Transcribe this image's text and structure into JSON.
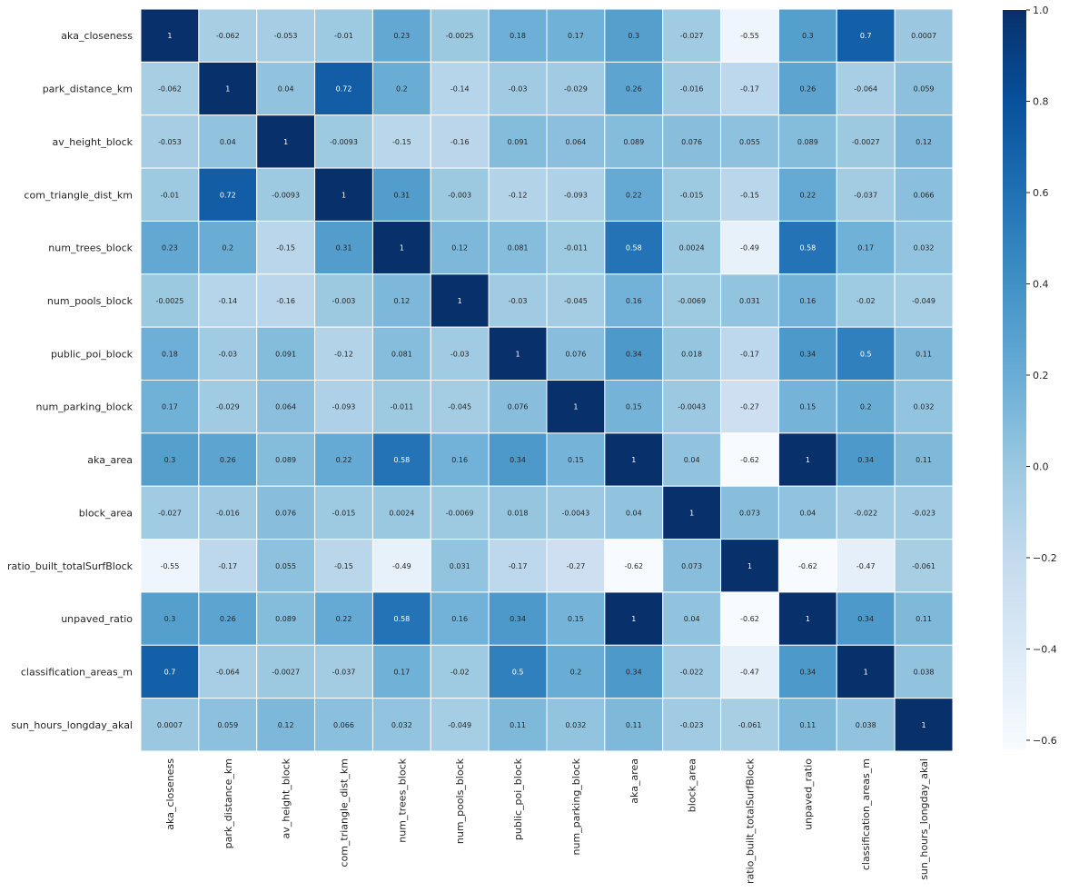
{
  "chart_data": {
    "type": "heatmap",
    "title": "",
    "colormap": "Blues",
    "labels": [
      "aka_closeness",
      "park_distance_km",
      "av_height_block",
      "com_triangle_dist_km",
      "num_trees_block",
      "num_pools_block",
      "public_poi_block",
      "num_parking_block",
      "aka_area",
      "block_area",
      "ratio_built_totalSurfBlock",
      "unpaved_ratio",
      "classification_areas_m",
      "sun_hours_longday_akal"
    ],
    "matrix": [
      [
        "1",
        "-0.062",
        "-0.053",
        "-0.01",
        "0.23",
        "-0.0025",
        "0.18",
        "0.17",
        "0.3",
        "-0.027",
        "-0.55",
        "0.3",
        "0.7",
        "0.0007"
      ],
      [
        "-0.062",
        "1",
        "0.04",
        "0.72",
        "0.2",
        "-0.14",
        "-0.03",
        "-0.029",
        "0.26",
        "-0.016",
        "-0.17",
        "0.26",
        "-0.064",
        "0.059"
      ],
      [
        "-0.053",
        "0.04",
        "1",
        "-0.0093",
        "-0.15",
        "-0.16",
        "0.091",
        "0.064",
        "0.089",
        "0.076",
        "0.055",
        "0.089",
        "-0.0027",
        "0.12"
      ],
      [
        "-0.01",
        "0.72",
        "-0.0093",
        "1",
        "0.31",
        "-0.003",
        "-0.12",
        "-0.093",
        "0.22",
        "-0.015",
        "-0.15",
        "0.22",
        "-0.037",
        "0.066"
      ],
      [
        "0.23",
        "0.2",
        "-0.15",
        "0.31",
        "1",
        "0.12",
        "0.081",
        "-0.011",
        "0.58",
        "0.0024",
        "-0.49",
        "0.58",
        "0.17",
        "0.032"
      ],
      [
        "-0.0025",
        "-0.14",
        "-0.16",
        "-0.003",
        "0.12",
        "1",
        "-0.03",
        "-0.045",
        "0.16",
        "-0.0069",
        "0.031",
        "0.16",
        "-0.02",
        "-0.049"
      ],
      [
        "0.18",
        "-0.03",
        "0.091",
        "-0.12",
        "0.081",
        "-0.03",
        "1",
        "0.076",
        "0.34",
        "0.018",
        "-0.17",
        "0.34",
        "0.5",
        "0.11"
      ],
      [
        "0.17",
        "-0.029",
        "0.064",
        "-0.093",
        "-0.011",
        "-0.045",
        "0.076",
        "1",
        "0.15",
        "-0.0043",
        "-0.27",
        "0.15",
        "0.2",
        "0.032"
      ],
      [
        "0.3",
        "0.26",
        "0.089",
        "0.22",
        "0.58",
        "0.16",
        "0.34",
        "0.15",
        "1",
        "0.04",
        "-0.62",
        "1",
        "0.34",
        "0.11"
      ],
      [
        "-0.027",
        "-0.016",
        "0.076",
        "-0.015",
        "0.0024",
        "-0.0069",
        "0.018",
        "-0.0043",
        "0.04",
        "1",
        "0.073",
        "0.04",
        "-0.022",
        "-0.023"
      ],
      [
        "-0.55",
        "-0.17",
        "0.055",
        "-0.15",
        "-0.49",
        "0.031",
        "-0.17",
        "-0.27",
        "-0.62",
        "0.073",
        "1",
        "-0.62",
        "-0.47",
        "-0.061"
      ],
      [
        "0.3",
        "0.26",
        "0.089",
        "0.22",
        "0.58",
        "0.16",
        "0.34",
        "0.15",
        "1",
        "0.04",
        "-0.62",
        "1",
        "0.34",
        "0.11"
      ],
      [
        "0.7",
        "-0.064",
        "-0.0027",
        "-0.037",
        "0.17",
        "-0.02",
        "0.5",
        "0.2",
        "0.34",
        "-0.022",
        "-0.47",
        "0.34",
        "1",
        "0.038"
      ],
      [
        "0.0007",
        "0.059",
        "0.12",
        "0.066",
        "0.032",
        "-0.049",
        "0.11",
        "0.032",
        "0.11",
        "-0.023",
        "-0.061",
        "0.11",
        "0.038",
        "1"
      ]
    ],
    "vmin": -0.62,
    "vmax": 1.0,
    "colorbar_ticks": [
      "1.0",
      "0.8",
      "0.6",
      "0.4",
      "0.2",
      "0.0",
      "−0.2",
      "−0.4",
      "−0.6"
    ],
    "colorbar_tick_values": [
      1.0,
      0.8,
      0.6,
      0.4,
      0.2,
      0.0,
      -0.2,
      -0.4,
      -0.6
    ],
    "annotations": true,
    "grid_lines": "white"
  }
}
